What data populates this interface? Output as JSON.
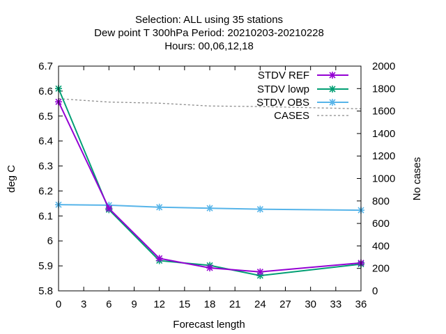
{
  "chart_data": {
    "type": "line",
    "title_lines": [
      "Selection: ALL using    35 stations",
      "Dew point T 300hPa   Period: 20210203-20210228",
      "Hours:  00,06,12,18"
    ],
    "xlabel": "Forecast length",
    "ylabel": "deg C",
    "y2label": "No cases",
    "xlim": [
      0,
      36
    ],
    "ylim": [
      5.8,
      6.7
    ],
    "y2lim": [
      0,
      2000
    ],
    "x_ticks": [
      0,
      3,
      6,
      9,
      12,
      15,
      18,
      21,
      24,
      27,
      30,
      33,
      36
    ],
    "y_ticks": [
      "5.8",
      "5.9",
      "6",
      "6.1",
      "6.2",
      "6.3",
      "6.4",
      "6.5",
      "6.6",
      "6.7"
    ],
    "y2_ticks": [
      0,
      200,
      400,
      600,
      800,
      1000,
      1200,
      1400,
      1600,
      1800,
      2000
    ],
    "legend_position": "top-right",
    "grid": false,
    "series": [
      {
        "name": "STDV REF",
        "color": "#9400d3",
        "axis": "left",
        "style": "line-points",
        "x": [
          0,
          6,
          12,
          18,
          24,
          36
        ],
        "y": [
          6.557,
          6.13,
          5.93,
          5.892,
          5.876,
          5.912
        ]
      },
      {
        "name": "STDV lowp",
        "color": "#009e73",
        "axis": "left",
        "style": "line-points",
        "x": [
          0,
          6,
          12,
          18,
          24,
          36
        ],
        "y": [
          6.61,
          6.125,
          5.921,
          5.902,
          5.861,
          5.907
        ]
      },
      {
        "name": "STDV OBS",
        "color": "#56b4e9",
        "axis": "left",
        "style": "line-points",
        "x": [
          0,
          6,
          12,
          18,
          24,
          36
        ],
        "y": [
          6.145,
          6.143,
          6.135,
          6.131,
          6.127,
          6.123
        ]
      },
      {
        "name": "CASES",
        "color": "#8c8c8c",
        "axis": "right",
        "style": "dashed",
        "x": [
          0,
          6,
          12,
          18,
          24,
          36
        ],
        "y": [
          1710,
          1680,
          1670,
          1645,
          1640,
          1620
        ]
      }
    ]
  }
}
